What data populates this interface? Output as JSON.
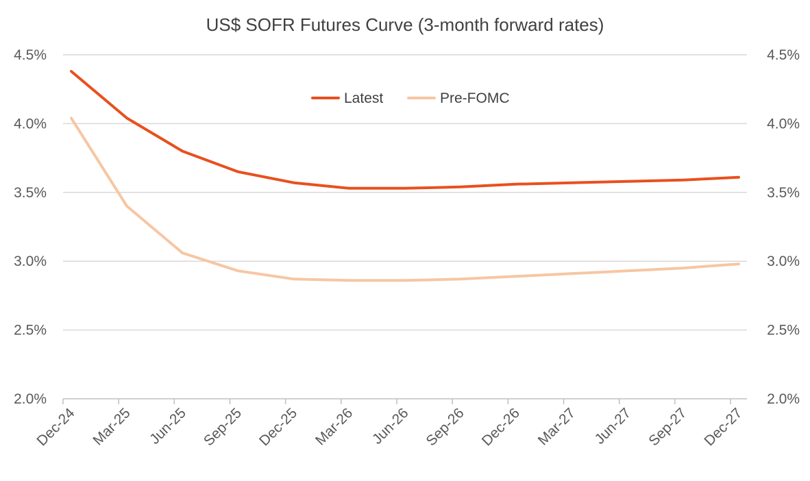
{
  "chart_data": {
    "type": "line",
    "title": "US$ SOFR Futures Curve (3-month forward rates)",
    "categories": [
      "Dec-24",
      "Mar-25",
      "Jun-25",
      "Sep-25",
      "Dec-25",
      "Mar-26",
      "Jun-26",
      "Sep-26",
      "Dec-26",
      "Mar-27",
      "Jun-27",
      "Sep-27",
      "Dec-27"
    ],
    "ylim": [
      2.0,
      4.5
    ],
    "yticks": [
      "2.0%",
      "2.5%",
      "3.0%",
      "3.5%",
      "4.0%",
      "4.5%"
    ],
    "ytick_values": [
      2.0,
      2.5,
      3.0,
      3.5,
      4.0,
      4.5
    ],
    "secondary_axis": true,
    "grid": true,
    "legend_position": "top-center",
    "series": [
      {
        "name": "Latest",
        "color": "#e8501e",
        "values": [
          4.38,
          4.04,
          3.8,
          3.65,
          3.57,
          3.53,
          3.53,
          3.54,
          3.56,
          3.57,
          3.58,
          3.59,
          3.61
        ]
      },
      {
        "name": "Pre-FOMC",
        "color": "#f7c6a3",
        "values": [
          4.04,
          3.4,
          3.06,
          2.93,
          2.87,
          2.86,
          2.86,
          2.87,
          2.89,
          2.91,
          2.93,
          2.95,
          2.98
        ]
      }
    ]
  }
}
